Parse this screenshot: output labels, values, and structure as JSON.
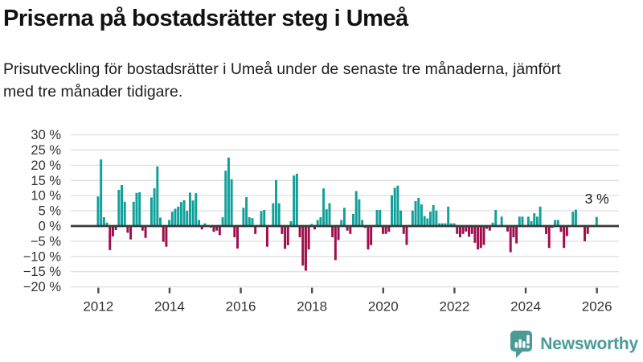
{
  "header": {
    "title": "Priserna på bostadsrätter steg i Umeå",
    "subtitle": "Prisutveckling för bostadsrätter i Umeå under de senaste tre månaderna, jämfört med tre månader tidigare."
  },
  "chart_data": {
    "type": "bar",
    "title": "Priserna på bostadsrätter steg i Umeå",
    "xlabel": "",
    "ylabel": "",
    "unit": "%",
    "x_unit": "month",
    "x_range": [
      "2012-01",
      "2026-01"
    ],
    "ylim": [
      -20,
      30
    ],
    "grid": "horizontal",
    "legend": "none",
    "yticks": [
      30,
      25,
      20,
      15,
      10,
      5,
      0,
      -5,
      -10,
      -15,
      -20
    ],
    "ytick_labels": [
      "30 %",
      "25 %",
      "20 %",
      "15 %",
      "10 %",
      "5 %",
      "0 %",
      "−5 %",
      "−10 %",
      "−15 %",
      "−20 %"
    ],
    "xtick_labels": [
      "2012",
      "2014",
      "2016",
      "2018",
      "2020",
      "2022",
      "2024",
      "2026"
    ],
    "annotation": {
      "text": "3 %",
      "value": 3.0,
      "position": "above-last-bar"
    },
    "colors": {
      "positive": "#10a09a",
      "negative": "#9f0d4d",
      "zero_line": "#3a3a3a",
      "gridline": "#e0e0e0",
      "axis_text": "#333333"
    },
    "values": [
      9.7,
      21.9,
      2.9,
      1.1,
      -7.9,
      -3.4,
      -1.3,
      11.9,
      13.5,
      8.0,
      -2.2,
      -4.4,
      8.0,
      10.9,
      11.1,
      -1.5,
      -3.9,
      0.3,
      9.4,
      12.4,
      19.6,
      2.8,
      -5.2,
      -6.8,
      2.0,
      4.7,
      5.7,
      6.4,
      7.9,
      8.5,
      5.0,
      11.0,
      8.4,
      10.8,
      2.0,
      -1.1,
      0.9,
      0.3,
      -0.5,
      -1.9,
      -1.5,
      -3.0,
      2.9,
      18.2,
      22.5,
      15.4,
      -3.7,
      -7.4,
      0.2,
      6.0,
      9.5,
      2.9,
      2.6,
      -2.6,
      0.3,
      4.9,
      5.3,
      -6.8,
      0.2,
      7.5,
      15.1,
      7.5,
      -2.6,
      -7.5,
      -6.3,
      1.6,
      16.6,
      17.2,
      -3.7,
      -13.0,
      -14.7,
      -7.7,
      0.7,
      -1.1,
      2.0,
      2.9,
      12.4,
      5.5,
      7.5,
      -3.7,
      -11.2,
      -4.6,
      2.0,
      6.0,
      -1.5,
      -2.6,
      4.0,
      11.5,
      8.8,
      2.0,
      -0.6,
      -7.7,
      -6.3,
      0.3,
      5.3,
      5.3,
      -2.6,
      -2.6,
      -1.9,
      10.1,
      12.6,
      13.3,
      5.1,
      -2.6,
      -6.2,
      0.3,
      5.1,
      8.2,
      9.3,
      7.1,
      3.3,
      2.5,
      4.7,
      6.9,
      5.1,
      0.9,
      0.9,
      0.9,
      6.4,
      0.9,
      0.9,
      -2.6,
      -3.7,
      -2.6,
      -1.8,
      -3.5,
      -2.6,
      -5.5,
      -7.7,
      -7.2,
      -6.2,
      -0.9,
      -1.5,
      1.1,
      5.3,
      0.3,
      3.1,
      0.2,
      -1.8,
      -8.6,
      -3.7,
      -5.7,
      3.1,
      3.1,
      0.3,
      3.1,
      1.6,
      4.2,
      3.1,
      6.4,
      0.2,
      -2.6,
      -7.2,
      -0.6,
      2.0,
      2.0,
      -1.9,
      -7.2,
      -3.3,
      0.2,
      4.7,
      5.4,
      0.2,
      0.2,
      -5.0,
      -2.6,
      -0.3,
      0.2,
      3.0
    ]
  },
  "footer": {
    "brand": "Newsworthy",
    "brand_color": "#4a9b98"
  }
}
